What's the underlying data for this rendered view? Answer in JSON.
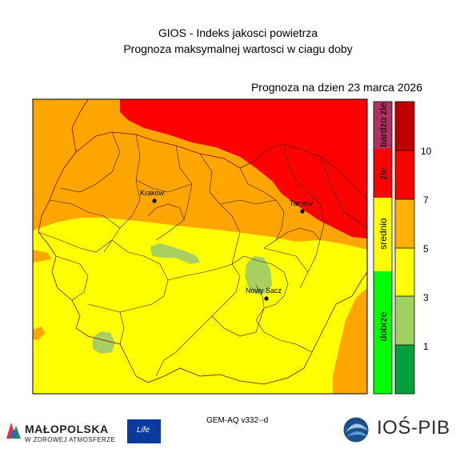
{
  "header": {
    "title": "GIOS - Indeks jakosci powietrza",
    "subtitle": "Prognoza maksymalnej wartosci w ciagu doby",
    "forecast_date": "Prognoza na dzien  23 marca 2026"
  },
  "map": {
    "cities": [
      {
        "name": "Krakow"
      },
      {
        "name": "Tarnow"
      },
      {
        "name": "Nowy Sacz"
      }
    ],
    "zone_colors": {
      "dobrze": "#a8d060",
      "srednio": "#ffff00",
      "zle": "#ffa500",
      "bardzo_zle": "#ff0000"
    }
  },
  "legend": {
    "categories": [
      {
        "label": "dobrze",
        "color": "#00ff00"
      },
      {
        "label": "srednio",
        "color": "#ffff00"
      },
      {
        "label": "zle",
        "color": "#ff0000"
      },
      {
        "label": "bardzo zle",
        "color": "#b03060"
      }
    ],
    "scale_colors": [
      "#00a040",
      "#a0d060",
      "#ffff00",
      "#ffb000",
      "#ff0000",
      "#c00000"
    ],
    "scale_labels": [
      "1",
      "3",
      "5",
      "7",
      "10"
    ]
  },
  "footer": {
    "model": "GEM-AQ v332--d",
    "malopolska_name": "MAŁOPOLSKA",
    "malopolska_tagline": "W ZDROWEJ ATMOSFERZE",
    "eu_life": "Life",
    "ios_name": "IOŚ-PIB"
  }
}
